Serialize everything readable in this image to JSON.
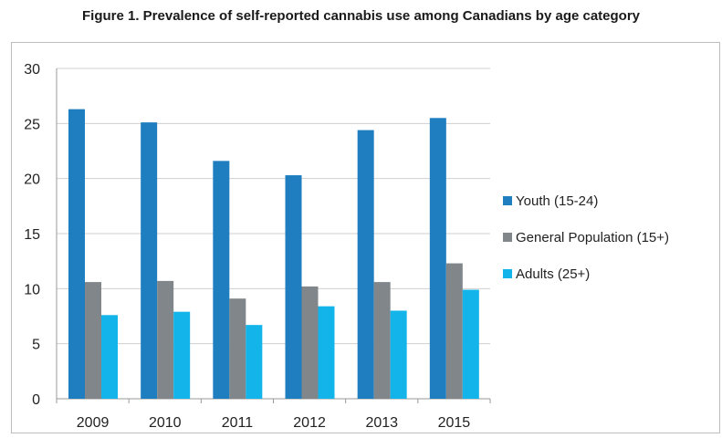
{
  "title": "Figure 1. Prevalence of self-reported cannabis use among Canadians by age category",
  "chart_data": {
    "type": "bar",
    "categories": [
      "2009",
      "2010",
      "2011",
      "2012",
      "2013",
      "2015"
    ],
    "series": [
      {
        "name": "Youth (15-24)",
        "color": "#1f7ec0",
        "values": [
          26.3,
          25.1,
          21.6,
          20.3,
          24.4,
          25.5
        ]
      },
      {
        "name": "General Population (15+)",
        "color": "#808689",
        "values": [
          10.6,
          10.7,
          9.1,
          10.2,
          10.6,
          12.3
        ]
      },
      {
        "name": "Adults (25+)",
        "color": "#12b4ea",
        "values": [
          7.6,
          7.9,
          6.7,
          8.4,
          8.0,
          9.9
        ]
      }
    ],
    "ylim": [
      0,
      30
    ],
    "yticks": [
      0,
      5,
      10,
      15,
      20,
      25,
      30
    ],
    "xlabel": "",
    "ylabel": "",
    "grid": true,
    "legend_position": "right"
  }
}
